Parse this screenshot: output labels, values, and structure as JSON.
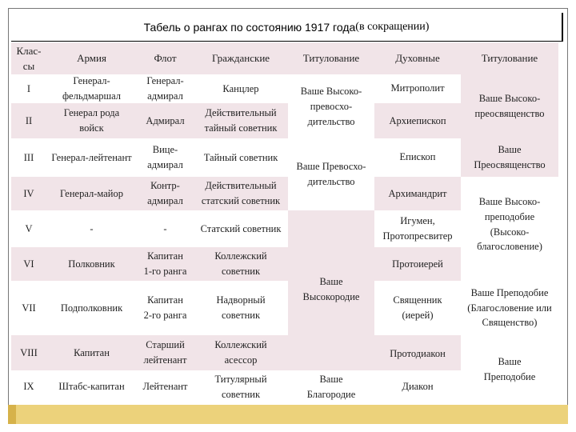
{
  "title": {
    "main": "Табель о рангах по состоянию 1917 года",
    "sub": "(в сокращении)"
  },
  "headers": {
    "class": "Клас-\nсы",
    "army": "Армия",
    "fleet": "Флот",
    "civil": "Гражданские",
    "titling": "Титулование",
    "clergy": "Духовные",
    "titling_clergy": "Титулование"
  },
  "rows": [
    {
      "cls": "I",
      "army": "Генерал-\nфельдмаршал",
      "fleet": "Генерал-\nадмирал",
      "civil": "Канцлер",
      "clergy": "Митрополит"
    },
    {
      "cls": "II",
      "army": "Генерал рода\nвойск",
      "fleet": "Адмирал",
      "civil": "Действительный\nтайный советник",
      "clergy": "Архиепископ"
    },
    {
      "cls": "III",
      "army": "Генерал-лейтенант",
      "fleet": "Вице-\nадмирал",
      "civil": "Тайный советник",
      "clergy": "Епископ"
    },
    {
      "cls": "IV",
      "army": "Генерал-майор",
      "fleet": "Контр-\nадмирал",
      "civil": "Действительный\nстатский советник",
      "clergy": "Архимандрит"
    },
    {
      "cls": "V",
      "army": "-",
      "fleet": "-",
      "civil": "Статский советник",
      "clergy": "Игумен,\nПротопресвитер"
    },
    {
      "cls": "VI",
      "army": "Полковник",
      "fleet": "Капитан\n1-го ранга",
      "civil": "Коллежский\nсоветник",
      "clergy": "Протоиерей"
    },
    {
      "cls": "VII",
      "army": "Подполковник",
      "fleet": "Капитан\n2-го ранга",
      "civil": "Надворный\nсоветник",
      "clergy": "Священник\n(иерей)"
    },
    {
      "cls": "VIII",
      "army": "Капитан",
      "fleet": "Старший\nлейтенант",
      "civil": "Коллежский\nасессор",
      "clergy": "Протодиакон"
    },
    {
      "cls": "IX",
      "army": "Штабс-капитан",
      "fleet": "Лейтенант",
      "civil": "Титулярный\nсоветник",
      "clergy": "Диакон"
    }
  ],
  "titling": {
    "t1": "Ваше Высоко-\nпревосхо-\nдительство",
    "t2": "Ваше Превосхо-\nдительство",
    "t3": "Ваше\nВысокородие",
    "t4": "Ваше\nБлагородие"
  },
  "titling_clergy": {
    "c1": "Ваше Высоко-\nпреосвященство",
    "c2": "Ваше\nПреосвященство",
    "c3": "Ваше Высоко-\nпреподобие\n(Высоко-\nблагословение)",
    "c4": "Ваше Преподобие\n(Благословение или\nСвященство)",
    "c5": "Ваше\nПреподобие"
  },
  "colors": {
    "pink": "#f1e4e8",
    "footer": "#ecd27b",
    "footer_accent": "#d6b24a"
  }
}
